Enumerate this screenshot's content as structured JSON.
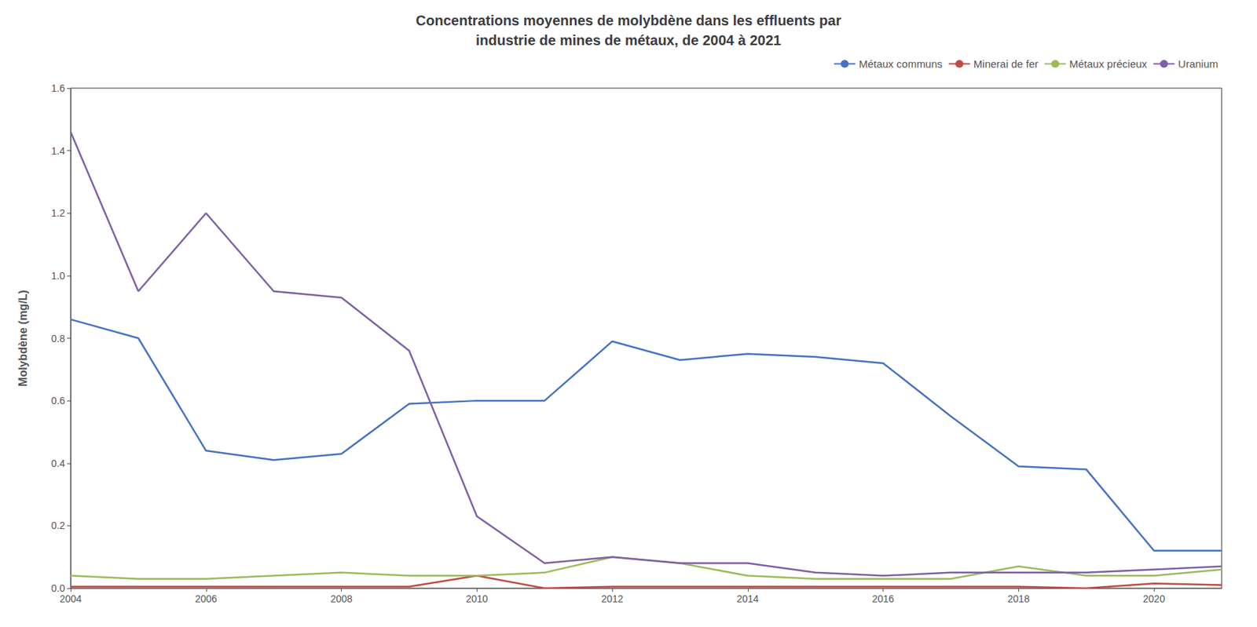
{
  "chart_data": {
    "type": "line",
    "title": "Concentrations moyennes de molybdène dans les effluents par\nindustrie de mines de métaux, de 2004 à 2021",
    "ylabel": "Molybdène (mg/L)",
    "x": [
      2004,
      2005,
      2006,
      2007,
      2008,
      2009,
      2010,
      2011,
      2012,
      2013,
      2014,
      2015,
      2016,
      2017,
      2018,
      2019,
      2020,
      2021
    ],
    "series": [
      {
        "name": "Métaux communs",
        "color": "#4472C4",
        "values": [
          0.86,
          0.8,
          0.44,
          0.41,
          0.43,
          0.59,
          0.6,
          0.6,
          0.79,
          0.73,
          0.75,
          0.74,
          0.72,
          0.55,
          0.39,
          0.38,
          0.12,
          0.12
        ]
      },
      {
        "name": "Minerai de fer",
        "color": "#BE4B48",
        "values": [
          0.005,
          0.005,
          0.005,
          0.005,
          0.005,
          0.005,
          0.04,
          0.0,
          0.005,
          0.005,
          0.005,
          0.005,
          0.005,
          0.005,
          0.005,
          0.0,
          0.015,
          0.01
        ]
      },
      {
        "name": "Métaux précieux",
        "color": "#9BBB59",
        "values": [
          0.04,
          0.03,
          0.03,
          0.04,
          0.05,
          0.04,
          0.04,
          0.05,
          0.1,
          0.08,
          0.04,
          0.03,
          0.03,
          0.03,
          0.07,
          0.04,
          0.04,
          0.06
        ]
      },
      {
        "name": "Uranium",
        "color": "#7F5FA6",
        "values": [
          1.46,
          0.95,
          1.2,
          0.95,
          0.93,
          0.76,
          0.23,
          0.08,
          0.1,
          0.08,
          0.08,
          0.05,
          0.04,
          0.05,
          0.05,
          0.05,
          0.06,
          0.07
        ]
      }
    ],
    "xlim": [
      2004,
      2021
    ],
    "xticks": [
      2004,
      2006,
      2008,
      2010,
      2012,
      2014,
      2016,
      2018,
      2020
    ],
    "ylim": [
      0,
      1.6
    ],
    "yticks": [
      {
        "value": 0.0,
        "label": "0.0"
      },
      0.2,
      0.4,
      0.6,
      0.8,
      {
        "value": 1.0,
        "label": "1.0"
      },
      1.2,
      1.4,
      1.6
    ],
    "grid": false,
    "legend": "upper right"
  }
}
